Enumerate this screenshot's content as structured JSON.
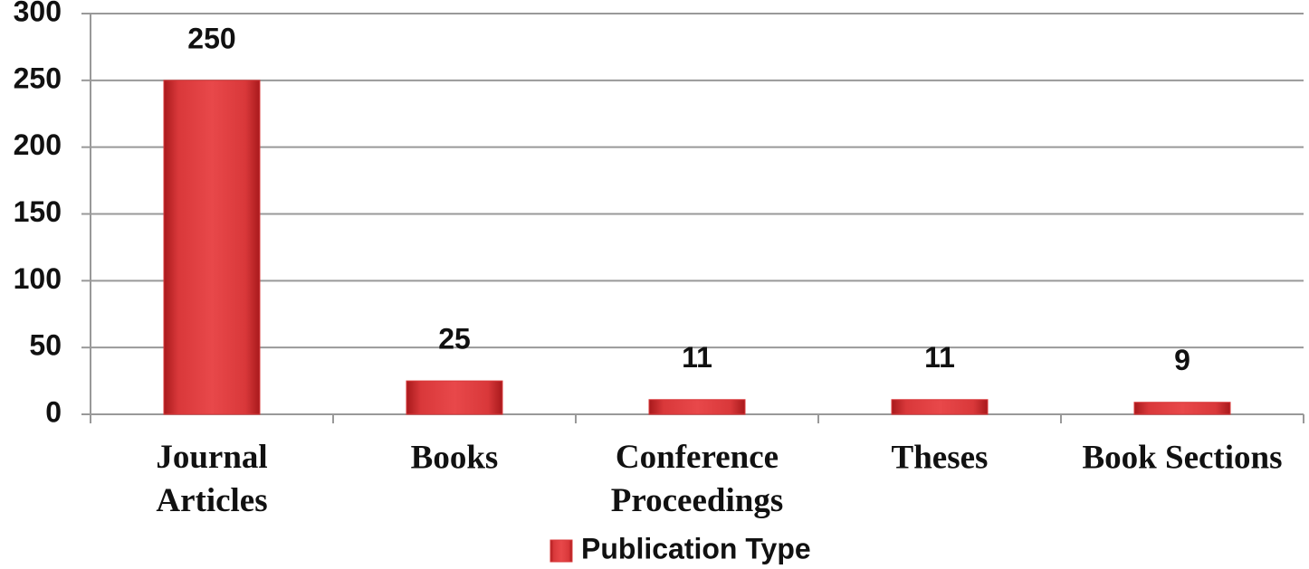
{
  "chart_data": {
    "type": "bar",
    "categories": [
      "Journal\nArticles",
      "Books",
      "Conference\nProceedings",
      "Theses",
      "Book Sections"
    ],
    "series": [
      {
        "name": "Publication Type",
        "color": "#d9383a",
        "values": [
          250,
          25,
          11,
          11,
          9
        ]
      }
    ],
    "ylim": [
      0,
      300
    ],
    "yticks": [
      0,
      50,
      100,
      150,
      200,
      250,
      300
    ],
    "grid": true,
    "legend": "bottom"
  }
}
